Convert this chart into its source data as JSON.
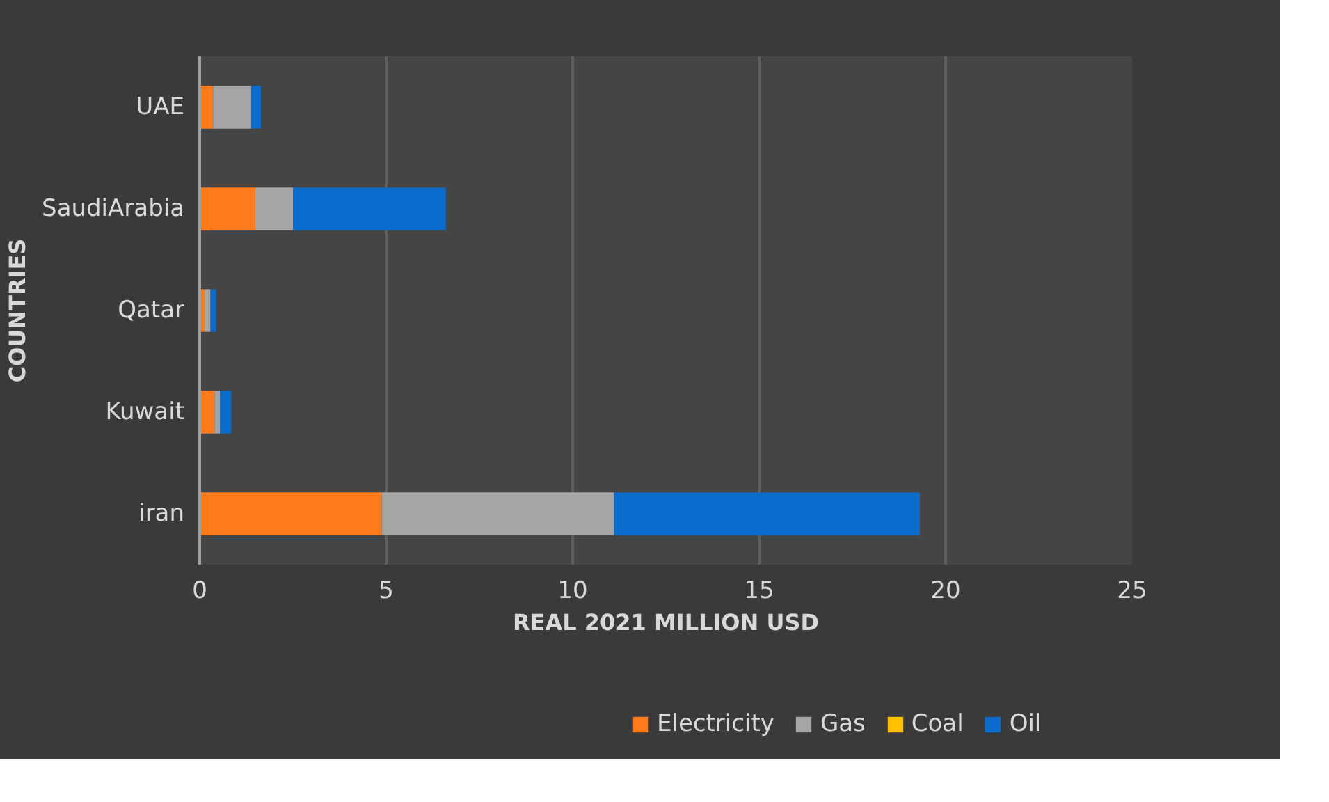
{
  "chart_data": {
    "type": "bar",
    "orientation": "horizontal",
    "stacked": true,
    "xlabel": "REAL 2021 MILLION USD",
    "ylabel": "COUNTRIES",
    "categories": [
      "UAE",
      "SaudiArabia",
      "Qatar",
      "Kuwait",
      "iran"
    ],
    "series": [
      {
        "name": "Electricity",
        "color": "#ff7a1a",
        "values": [
          0.36,
          1.49,
          0.14,
          0.4,
          4.88
        ]
      },
      {
        "name": "Gas",
        "color": "#a5a5a5",
        "values": [
          1.02,
          1.01,
          0.15,
          0.15,
          6.23
        ]
      },
      {
        "name": "Coal",
        "color": "#ffc000",
        "values": [
          0,
          0,
          0,
          0,
          0
        ]
      },
      {
        "name": "Oil",
        "color": "#0a6ccc",
        "values": [
          0.26,
          4.1,
          0.15,
          0.3,
          8.2
        ]
      }
    ],
    "xlim": [
      0,
      25
    ],
    "xticks": [
      0,
      5,
      10,
      15,
      20,
      25
    ],
    "grid": "x",
    "legend": "bottom"
  }
}
